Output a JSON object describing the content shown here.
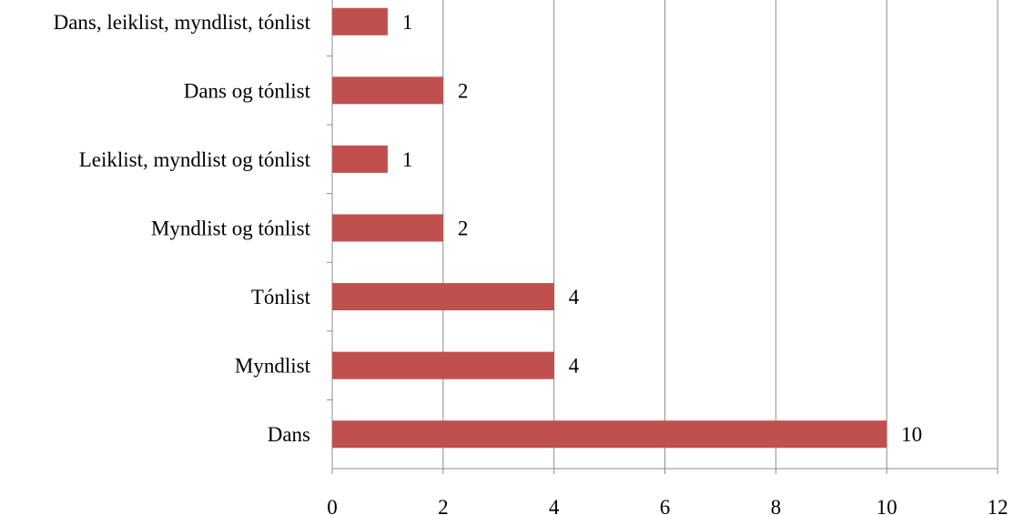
{
  "chart_data": {
    "type": "bar",
    "orientation": "horizontal",
    "categories": [
      "Dans, leiklist, myndlist, tónlist",
      "Dans og tónlist",
      "Leiklist, myndlist og tónlist",
      "Myndlist og tónlist",
      "Tónlist",
      "Myndlist",
      "Dans"
    ],
    "values": [
      1,
      2,
      1,
      2,
      4,
      4,
      10
    ],
    "data_labels": [
      "1",
      "2",
      "1",
      "2",
      "4",
      "4",
      "10"
    ],
    "x_ticks": [
      "0",
      "2",
      "4",
      "6",
      "8",
      "10",
      "12"
    ],
    "xlim": [
      0,
      12
    ],
    "title": "",
    "xlabel": "",
    "ylabel": "",
    "grid": "vertical",
    "legend": "none",
    "bar_color": "#c0504d"
  }
}
